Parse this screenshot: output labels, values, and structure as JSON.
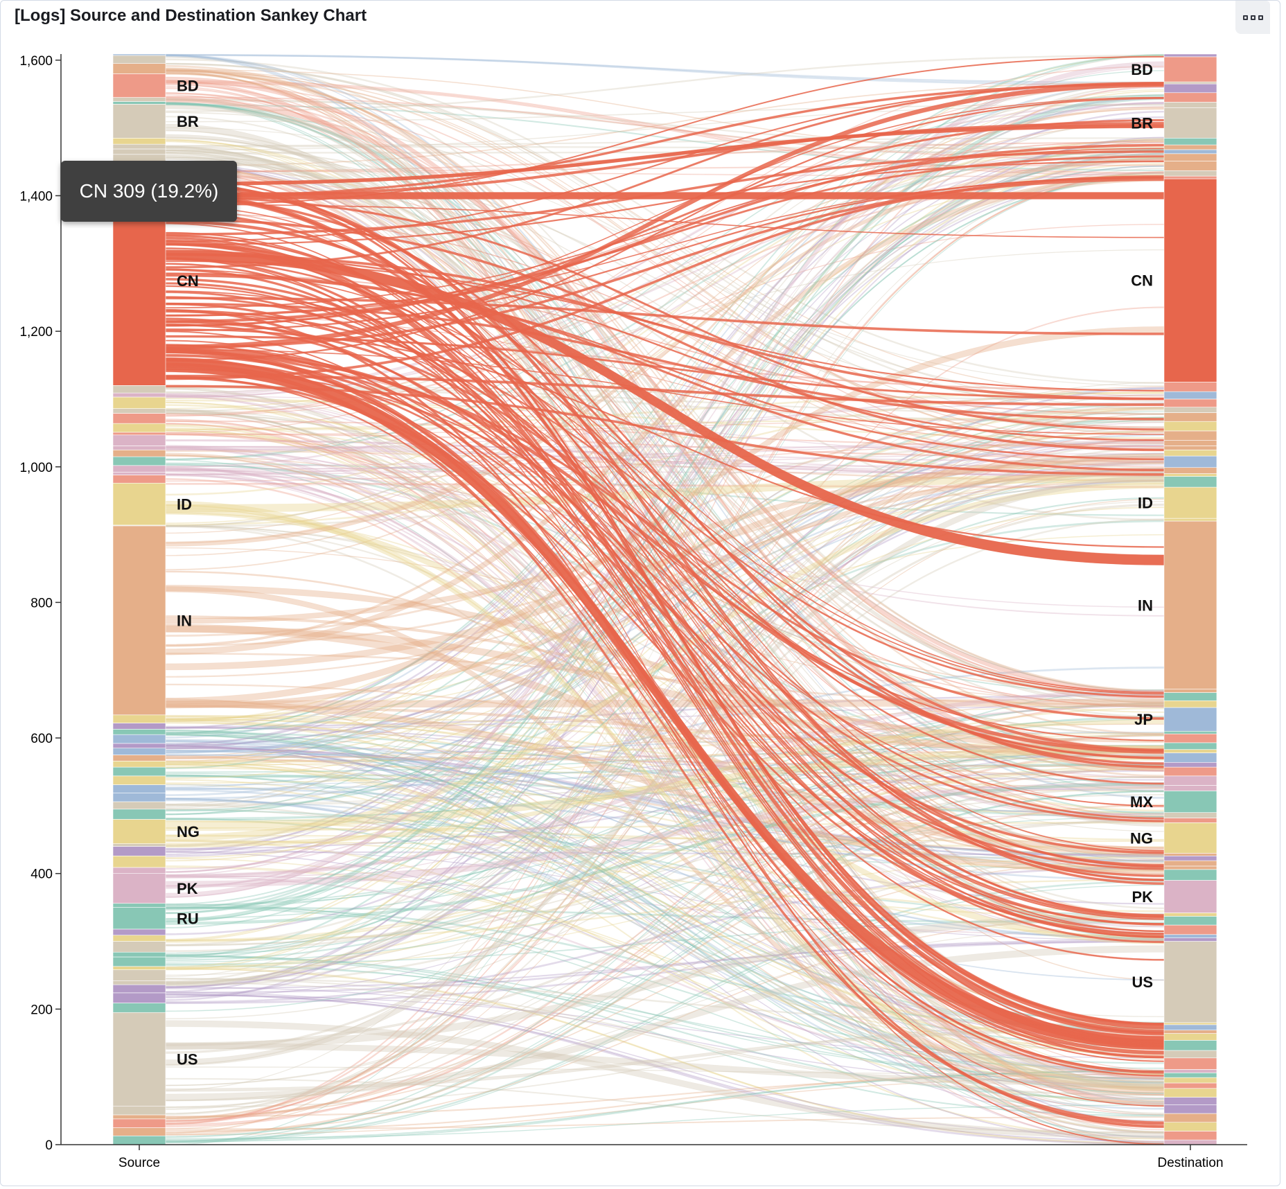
{
  "panel": {
    "title": "[Logs] Source and Destination Sankey Chart",
    "options_icon": "options-menu-icon"
  },
  "tooltip": {
    "text": "CN 309 (19.2%)"
  },
  "chart_data": {
    "type": "sankey",
    "title": "[Logs] Source and Destination Sankey Chart",
    "ylim": [
      0,
      1609
    ],
    "yticks": [
      0,
      200,
      400,
      600,
      800,
      "1,000",
      "1,200",
      "1,400",
      "1,600"
    ],
    "ytick_values": [
      0,
      200,
      400,
      600,
      800,
      1000,
      1200,
      1400,
      1600
    ],
    "columns": [
      "Source",
      "Destination"
    ],
    "highlighted": {
      "node": "CN",
      "value": 309,
      "percent": "19.2%"
    },
    "colors": {
      "CN": "#e7664c",
      "IN": "#e5af89",
      "US": "#d5cbb8",
      "BR": "#d5cbb8",
      "BD": "#ee9a88",
      "ID": "#e8d58f",
      "NG": "#e8d58f",
      "PK": "#dbb3c6",
      "RU": "#88c7b5",
      "JP": "#9fb9d8",
      "MX": "#88c7b5",
      "minor": [
        "#9fb9d8",
        "#b39ac7",
        "#88c7b5",
        "#e8d58f",
        "#dbb3c6",
        "#ee9a88",
        "#d5cbb8",
        "#e5af89"
      ]
    },
    "source_nodes": [
      {
        "label": "BD",
        "range": [
          1545,
          1580
        ]
      },
      {
        "label": "BR",
        "range": [
          1485,
          1535
        ]
      },
      {
        "label": "CN",
        "range": [
          1120,
          1429
        ]
      },
      {
        "label": "ID",
        "range": [
          914,
          976
        ]
      },
      {
        "label": "IN",
        "range": [
          634,
          913
        ]
      },
      {
        "label": "NG",
        "range": [
          444,
          480
        ]
      },
      {
        "label": "PK",
        "range": [
          356,
          400
        ]
      },
      {
        "label": "RU",
        "range": [
          318,
          350
        ]
      },
      {
        "label": "US",
        "range": [
          57,
          195
        ]
      }
    ],
    "destination_nodes": [
      {
        "label": "BD",
        "range": [
          1568,
          1605
        ]
      },
      {
        "label": "BR",
        "range": [
          1485,
          1530
        ]
      },
      {
        "label": "CN",
        "range": [
          1125,
          1425
        ]
      },
      {
        "label": "ID",
        "range": [
          924,
          970
        ]
      },
      {
        "label": "IN",
        "range": [
          672,
          920
        ]
      },
      {
        "label": "JP",
        "range": [
          610,
          645
        ]
      },
      {
        "label": "MX",
        "range": [
          490,
          522
        ]
      },
      {
        "label": "NG",
        "range": [
          430,
          475
        ]
      },
      {
        "label": "PK",
        "range": [
          342,
          390
        ]
      },
      {
        "label": "US",
        "range": [
          180,
          300
        ]
      }
    ]
  }
}
